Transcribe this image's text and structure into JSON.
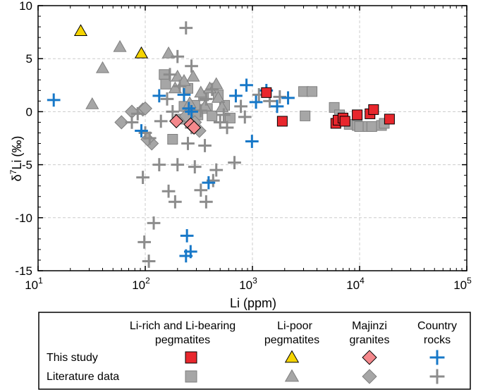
{
  "chart_data": {
    "type": "scatter",
    "xlabel": "Li (ppm)",
    "ylabel": "δ7Li (‰)",
    "ylabel_parts": {
      "delta": "δ",
      "sup": "7",
      "element": "Li",
      "unit": "(‰)"
    },
    "xscale": "log",
    "xlim": [
      10,
      100000
    ],
    "ylim": [
      -15,
      10
    ],
    "x_ticks": [
      {
        "value": 10,
        "base": "10",
        "exp": "1"
      },
      {
        "value": 100,
        "base": "10",
        "exp": "2"
      },
      {
        "value": 1000,
        "base": "10",
        "exp": "3"
      },
      {
        "value": 10000,
        "base": "10",
        "exp": "4"
      },
      {
        "value": 100000,
        "base": "10",
        "exp": "5"
      }
    ],
    "y_ticks": [
      {
        "value": 10,
        "label": "10"
      },
      {
        "value": 5,
        "label": "5"
      },
      {
        "value": 0,
        "label": "0"
      },
      {
        "value": -5,
        "label": "-5"
      },
      {
        "value": -10,
        "label": "-10"
      },
      {
        "value": -15,
        "label": "-15"
      }
    ],
    "grid": true,
    "colors": {
      "this_study_square": "#e8272d",
      "this_study_triangle": "#f5d400",
      "this_study_diamond": "#f4888c",
      "this_study_cross": "#1778c8",
      "literature": "#a6a6a6",
      "literature_edge": "#7f7f7f",
      "grid": "#cccccc"
    },
    "series": [
      {
        "name": "Li-rich and Li-bearing pegmatites (this study)",
        "marker": "square",
        "source": "this study",
        "points": [
          [
            1350,
            1.8
          ],
          [
            1900,
            -0.9
          ],
          [
            6000,
            -1.1
          ],
          [
            6300,
            -0.8
          ],
          [
            7000,
            -0.6
          ],
          [
            7300,
            -0.9
          ],
          [
            9500,
            -0.3
          ],
          [
            12500,
            -0.2
          ],
          [
            13500,
            0.2
          ],
          [
            19000,
            -0.7
          ]
        ]
      },
      {
        "name": "Li-poor pegmatites (this study)",
        "marker": "triangle",
        "source": "this study",
        "points": [
          [
            25,
            7.6
          ],
          [
            92,
            5.5
          ]
        ]
      },
      {
        "name": "Majinzi granites (this study)",
        "marker": "diamond",
        "source": "this study",
        "points": [
          [
            195,
            -0.9
          ],
          [
            265,
            -1.2
          ],
          [
            285,
            -1.5
          ]
        ]
      },
      {
        "name": "Country rocks (this study)",
        "marker": "cross",
        "source": "this study",
        "points": [
          [
            14,
            1.1
          ],
          [
            92,
            -1.8
          ],
          [
            135,
            1.5
          ],
          [
            230,
            1.6
          ],
          [
            245,
            -11.7
          ],
          [
            240,
            -13.6
          ],
          [
            265,
            -13.2
          ],
          [
            255,
            0.3
          ],
          [
            270,
            0.0
          ],
          [
            390,
            -6.7
          ],
          [
            700,
            1.5
          ],
          [
            880,
            2.5
          ],
          [
            990,
            -2.8
          ],
          [
            1080,
            0.9
          ],
          [
            1350,
            2.0
          ],
          [
            1700,
            0.5
          ],
          [
            2150,
            1.3
          ]
        ]
      },
      {
        "name": "Li-rich and Li-bearing pegmatites (literature)",
        "marker": "square",
        "source": "literature",
        "points": [
          [
            150,
            3.5
          ],
          [
            155,
            2.6
          ],
          [
            180,
            -2.6
          ],
          [
            210,
            -0.7
          ],
          [
            230,
            0.5
          ],
          [
            250,
            2.2
          ],
          [
            290,
            0.6
          ],
          [
            310,
            -0.3
          ],
          [
            350,
            1.5
          ],
          [
            380,
            0.3
          ],
          [
            420,
            -0.4
          ],
          [
            480,
            1.6
          ],
          [
            550,
            0.6
          ],
          [
            620,
            -0.6
          ],
          [
            3000,
            1.9
          ],
          [
            3600,
            1.9
          ],
          [
            3100,
            -0.4
          ],
          [
            5800,
            0.4
          ],
          [
            6500,
            -0.3
          ],
          [
            8000,
            -1.2
          ],
          [
            9500,
            -1.3
          ],
          [
            10000,
            -1.4
          ],
          [
            12000,
            -1.4
          ],
          [
            13000,
            -1.4
          ],
          [
            16000,
            -1.3
          ],
          [
            17000,
            -1.1
          ]
        ]
      },
      {
        "name": "Li-poor pegmatites (literature)",
        "marker": "triangle",
        "source": "literature",
        "points": [
          [
            32,
            0.7
          ],
          [
            40,
            4.1
          ],
          [
            58,
            6.1
          ],
          [
            165,
            5.5
          ],
          [
            190,
            2.2
          ],
          [
            200,
            3.3
          ],
          [
            230,
            2.9
          ],
          [
            280,
            3.3
          ],
          [
            260,
            0.8
          ],
          [
            330,
            1.8
          ],
          [
            360,
            0.5
          ],
          [
            400,
            2.2
          ],
          [
            460,
            2.6
          ],
          [
            480,
            1.3
          ],
          [
            520,
            0.4
          ]
        ]
      },
      {
        "name": "Majinzi granites (literature)",
        "marker": "diamond",
        "source": "literature",
        "points": [
          [
            60,
            -1.0
          ],
          [
            75,
            0.0
          ],
          [
            95,
            0.2
          ],
          [
            100,
            0.3
          ],
          [
            115,
            -3.0
          ],
          [
            105,
            -2.6
          ],
          [
            240,
            -0.4
          ],
          [
            290,
            -1.0
          ],
          [
            320,
            -1.8
          ]
        ]
      },
      {
        "name": "Country rocks (literature)",
        "marker": "cross",
        "source": "literature",
        "points": [
          [
            240,
            7.9
          ],
          [
            270,
            4.3
          ],
          [
            200,
            5.2
          ],
          [
            170,
            3.5
          ],
          [
            210,
            2.4
          ],
          [
            160,
            1.2
          ],
          [
            180,
            0.0
          ],
          [
            140,
            -0.9
          ],
          [
            85,
            -0.2
          ],
          [
            75,
            -1.0
          ],
          [
            100,
            -2.0
          ],
          [
            110,
            -2.5
          ],
          [
            95,
            -6.2
          ],
          [
            135,
            -5.0
          ],
          [
            165,
            -7.5
          ],
          [
            190,
            -8.5
          ],
          [
            200,
            -5.0
          ],
          [
            250,
            -3.0
          ],
          [
            270,
            -1.5
          ],
          [
            290,
            -5.2
          ],
          [
            330,
            -7.4
          ],
          [
            360,
            -3.2
          ],
          [
            370,
            -8.5
          ],
          [
            430,
            -6.5
          ],
          [
            460,
            -5.5
          ],
          [
            500,
            -1.0
          ],
          [
            540,
            -0.3
          ],
          [
            580,
            -1.5
          ],
          [
            680,
            -4.8
          ],
          [
            780,
            0.5
          ],
          [
            850,
            -0.5
          ],
          [
            1150,
            1.6
          ],
          [
            1450,
            1.0
          ],
          [
            1800,
            1.4
          ],
          [
            120,
            -10.5
          ],
          [
            98,
            -12.3
          ],
          [
            108,
            -14.1
          ],
          [
            330,
            0.1
          ],
          [
            420,
            2.1
          ],
          [
            370,
            1.2
          ]
        ]
      }
    ],
    "legend": {
      "column_headers": [
        {
          "line1": "Li-rich and Li-bearing",
          "line2": "pegmatites"
        },
        {
          "line1": "Li-poor",
          "line2": "pegmatites"
        },
        {
          "line1": "Majinzi",
          "line2": "granites"
        },
        {
          "line1": "Country",
          "line2": "rocks"
        }
      ],
      "row_labels": [
        "This study",
        "Literature data"
      ],
      "markers": [
        "square",
        "triangle",
        "diamond",
        "cross"
      ],
      "placement": "bottom"
    }
  }
}
